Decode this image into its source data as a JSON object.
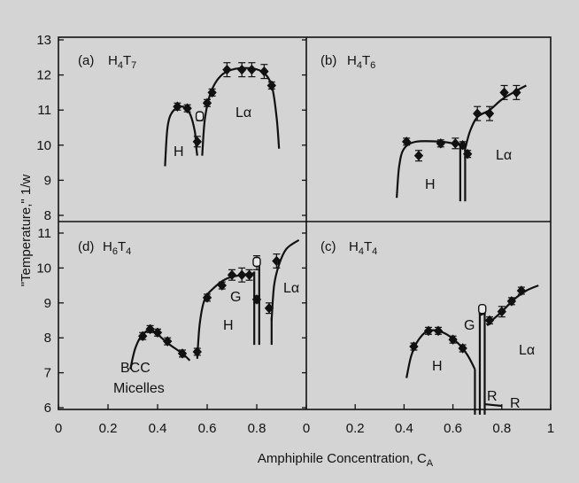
{
  "chart_data": [
    {
      "panel": "a",
      "panel_label": "(a)",
      "title": "H4T7",
      "type": "scatter",
      "xlim": [
        0,
        1
      ],
      "ylim": [
        8.5,
        13
      ],
      "y_ticks": [
        8,
        9,
        10,
        11,
        12,
        13
      ],
      "phases": [
        "H",
        "Lα"
      ],
      "points": [
        {
          "x": 0.48,
          "y": 11.1,
          "err": 0.1
        },
        {
          "x": 0.52,
          "y": 11.05,
          "err": 0.1
        },
        {
          "x": 0.56,
          "y": 10.1,
          "err": 0.15
        },
        {
          "x": 0.57,
          "y": 10.8,
          "err": 0.1,
          "open": true
        },
        {
          "x": 0.6,
          "y": 11.2,
          "err": 0.1
        },
        {
          "x": 0.62,
          "y": 11.5,
          "err": 0.1
        },
        {
          "x": 0.68,
          "y": 12.15,
          "err": 0.2
        },
        {
          "x": 0.74,
          "y": 12.15,
          "err": 0.2
        },
        {
          "x": 0.78,
          "y": 12.15,
          "err": 0.2
        },
        {
          "x": 0.83,
          "y": 12.1,
          "err": 0.2
        },
        {
          "x": 0.86,
          "y": 11.7,
          "err": 0.1
        }
      ],
      "boundaries": [
        {
          "name": "H",
          "x": [
            0.43,
            0.44,
            0.46,
            0.5,
            0.53,
            0.55,
            0.555,
            0.56
          ],
          "y": [
            9.4,
            10.5,
            10.95,
            11.1,
            10.9,
            10.4,
            10.0,
            9.7
          ]
        },
        {
          "name": "Lα",
          "x": [
            0.58,
            0.59,
            0.61,
            0.64,
            0.68,
            0.75,
            0.82,
            0.86,
            0.88,
            0.89
          ],
          "y": [
            9.7,
            10.7,
            11.4,
            11.85,
            12.1,
            12.2,
            12.1,
            11.7,
            10.8,
            9.9
          ]
        }
      ]
    },
    {
      "panel": "b",
      "panel_label": "(b)",
      "title": "H4T6",
      "type": "scatter",
      "xlim": [
        0,
        1
      ],
      "ylim": [
        8.5,
        13
      ],
      "phases": [
        "H",
        "Lα"
      ],
      "points": [
        {
          "x": 0.41,
          "y": 10.1,
          "err": 0.1
        },
        {
          "x": 0.46,
          "y": 9.7,
          "err": 0.15
        },
        {
          "x": 0.55,
          "y": 10.05,
          "err": 0.1
        },
        {
          "x": 0.61,
          "y": 10.05,
          "err": 0.15
        },
        {
          "x": 0.64,
          "y": 10.0,
          "err": 0.1
        },
        {
          "x": 0.66,
          "y": 9.75,
          "err": 0.1
        },
        {
          "x": 0.7,
          "y": 10.9,
          "err": 0.2
        },
        {
          "x": 0.75,
          "y": 10.9,
          "err": 0.2
        },
        {
          "x": 0.81,
          "y": 11.5,
          "err": 0.2
        },
        {
          "x": 0.86,
          "y": 11.5,
          "err": 0.2
        }
      ],
      "boundaries": [
        {
          "name": "H",
          "x": [
            0.37,
            0.38,
            0.4,
            0.45,
            0.55,
            0.6,
            0.62
          ],
          "y": [
            8.5,
            9.4,
            9.9,
            10.1,
            10.1,
            10.05,
            10.0
          ]
        },
        {
          "name": "Lα",
          "x": [
            0.65,
            0.67,
            0.7,
            0.75,
            0.8,
            0.86,
            0.9
          ],
          "y": [
            9.9,
            10.4,
            10.8,
            11.0,
            11.3,
            11.55,
            11.7
          ]
        }
      ],
      "vertical_lines": [
        {
          "x": 0.63,
          "y": [
            8.4,
            10.05
          ]
        },
        {
          "x": 0.65,
          "y": [
            8.4,
            10.0
          ]
        }
      ]
    },
    {
      "panel": "d",
      "panel_label": "(d)",
      "title": "H6T4",
      "type": "scatter",
      "xlim": [
        0,
        1
      ],
      "ylim": [
        5.8,
        11
      ],
      "y_ticks": [
        6,
        7,
        8,
        9,
        10,
        11
      ],
      "x_ticks": [
        "0",
        "0.2",
        "0.4",
        "0.6",
        "0.8"
      ],
      "phases": [
        "BCC",
        "Micelles",
        "H",
        "G",
        "Lα"
      ],
      "points": [
        {
          "x": 0.34,
          "y": 8.05,
          "err": 0.1
        },
        {
          "x": 0.37,
          "y": 8.25,
          "err": 0.1
        },
        {
          "x": 0.4,
          "y": 8.15,
          "err": 0.1
        },
        {
          "x": 0.44,
          "y": 7.9,
          "err": 0.1
        },
        {
          "x": 0.5,
          "y": 7.55,
          "err": 0.1
        },
        {
          "x": 0.56,
          "y": 7.6,
          "err": 0.1
        },
        {
          "x": 0.6,
          "y": 9.15,
          "err": 0.1
        },
        {
          "x": 0.66,
          "y": 9.5,
          "err": 0.1
        },
        {
          "x": 0.7,
          "y": 9.8,
          "err": 0.15
        },
        {
          "x": 0.74,
          "y": 9.8,
          "err": 0.2
        },
        {
          "x": 0.77,
          "y": 9.8,
          "err": 0.15
        },
        {
          "x": 0.8,
          "y": 10.15,
          "err": 0.2,
          "open": true
        },
        {
          "x": 0.8,
          "y": 9.1,
          "err": 0.1
        },
        {
          "x": 0.85,
          "y": 8.85,
          "err": 0.15
        },
        {
          "x": 0.88,
          "y": 10.2,
          "err": 0.2
        }
      ],
      "boundaries": [
        {
          "name": "BCC",
          "x": [
            0.29,
            0.31,
            0.34,
            0.38,
            0.44,
            0.5,
            0.53
          ],
          "y": [
            7.1,
            7.7,
            8.1,
            8.2,
            7.85,
            7.55,
            7.35
          ]
        },
        {
          "name": "H",
          "x": [
            0.56,
            0.57,
            0.59,
            0.63,
            0.68,
            0.74,
            0.79
          ],
          "y": [
            7.4,
            8.4,
            9.1,
            9.45,
            9.7,
            9.8,
            9.85
          ]
        },
        {
          "name": "G",
          "x": [
            0.79,
            0.81
          ],
          "y": [
            10.2,
            10.3
          ]
        },
        {
          "name": "Lα",
          "x": [
            0.86,
            0.87,
            0.89,
            0.92,
            0.97
          ],
          "y": [
            8.5,
            9.5,
            10.1,
            10.55,
            10.8
          ]
        }
      ],
      "vertical_lines": [
        {
          "x": 0.79,
          "y": [
            7.8,
            9.9
          ]
        },
        {
          "x": 0.81,
          "y": [
            7.8,
            10.3
          ]
        },
        {
          "x": 0.86,
          "y": [
            7.8,
            8.6
          ]
        }
      ]
    },
    {
      "panel": "c",
      "panel_label": "(c)",
      "title": "H4T4",
      "type": "scatter",
      "xlim": [
        0,
        1
      ],
      "ylim": [
        5.8,
        11
      ],
      "x_ticks": [
        "0",
        "0.2",
        "0.4",
        "0.6",
        "0.8",
        "1"
      ],
      "phases": [
        "H",
        "G",
        "Lα",
        "R",
        "R"
      ],
      "points": [
        {
          "x": 0.44,
          "y": 7.75,
          "err": 0.1
        },
        {
          "x": 0.5,
          "y": 8.2,
          "err": 0.1
        },
        {
          "x": 0.54,
          "y": 8.2,
          "err": 0.1
        },
        {
          "x": 0.6,
          "y": 7.95,
          "err": 0.1
        },
        {
          "x": 0.64,
          "y": 7.7,
          "err": 0.1
        },
        {
          "x": 0.72,
          "y": 8.8,
          "err": 0.1,
          "open": true
        },
        {
          "x": 0.75,
          "y": 8.5,
          "err": 0.1
        },
        {
          "x": 0.8,
          "y": 8.75,
          "err": 0.15
        },
        {
          "x": 0.84,
          "y": 9.05,
          "err": 0.1
        },
        {
          "x": 0.88,
          "y": 9.35,
          "err": 0.1
        }
      ],
      "boundaries": [
        {
          "name": "H",
          "x": [
            0.41,
            0.43,
            0.46,
            0.5,
            0.56,
            0.62,
            0.66,
            0.69
          ],
          "y": [
            6.85,
            7.5,
            7.95,
            8.2,
            8.15,
            7.85,
            7.5,
            7.1
          ]
        },
        {
          "name": "G",
          "x": [
            0.71,
            0.73
          ],
          "y": [
            8.65,
            8.7
          ]
        },
        {
          "name": "Lα",
          "x": [
            0.74,
            0.76,
            0.8,
            0.85,
            0.9,
            0.95
          ],
          "y": [
            8.35,
            8.5,
            8.75,
            9.1,
            9.35,
            9.5
          ]
        },
        {
          "name": "R",
          "x": [
            0.73,
            0.8
          ],
          "y": [
            6.1,
            6.05
          ]
        }
      ],
      "vertical_lines": [
        {
          "x": 0.69,
          "y": [
            5.8,
            7.1
          ]
        },
        {
          "x": 0.71,
          "y": [
            5.8,
            8.8
          ]
        },
        {
          "x": 0.73,
          "y": [
            5.8,
            8.8
          ]
        }
      ]
    }
  ],
  "axes": {
    "ylabel": "\"Temperature,\" 1/w",
    "xlabel_main": "Amphiphile Concentration, C",
    "xlabel_sub": "A"
  }
}
